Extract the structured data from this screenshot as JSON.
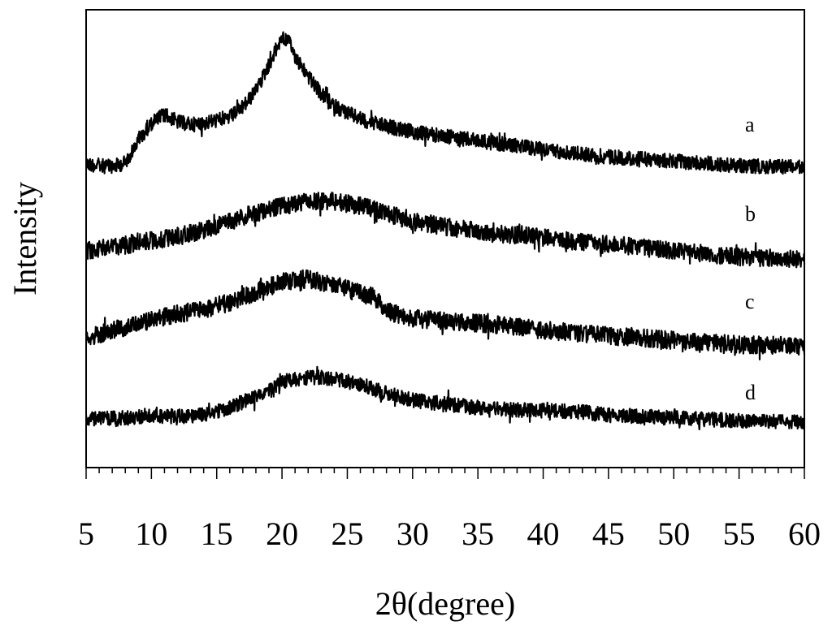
{
  "chart_data": {
    "type": "line",
    "title": "",
    "xlabel": "2θ(degree)",
    "ylabel": "Intensity",
    "xlim": [
      5,
      60
    ],
    "xticks": [
      5,
      10,
      15,
      20,
      25,
      30,
      35,
      40,
      45,
      50,
      55,
      60
    ],
    "yticks_shown": false,
    "grid": false,
    "legend": "inline labels at right",
    "series": [
      {
        "name": "a",
        "color": "#000000",
        "profile": [
          [
            5,
            0.06
          ],
          [
            6,
            0.05
          ],
          [
            7,
            0.04
          ],
          [
            8,
            0.07
          ],
          [
            9,
            0.22
          ],
          [
            10,
            0.34
          ],
          [
            11,
            0.4
          ],
          [
            12,
            0.35
          ],
          [
            13,
            0.33
          ],
          [
            14,
            0.34
          ],
          [
            15,
            0.36
          ],
          [
            16,
            0.38
          ],
          [
            17,
            0.45
          ],
          [
            18,
            0.56
          ],
          [
            19,
            0.74
          ],
          [
            20,
            0.93
          ],
          [
            20.5,
            0.9
          ],
          [
            21,
            0.8
          ],
          [
            22,
            0.66
          ],
          [
            23,
            0.54
          ],
          [
            24,
            0.46
          ],
          [
            25,
            0.41
          ],
          [
            26,
            0.37
          ],
          [
            27,
            0.34
          ],
          [
            28,
            0.32
          ],
          [
            30,
            0.28
          ],
          [
            35,
            0.22
          ],
          [
            40,
            0.16
          ],
          [
            45,
            0.11
          ],
          [
            50,
            0.08
          ],
          [
            55,
            0.05
          ],
          [
            60,
            0.04
          ]
        ]
      },
      {
        "name": "b",
        "color": "#000000",
        "profile": [
          [
            5,
            0.06
          ],
          [
            8,
            0.1
          ],
          [
            10,
            0.13
          ],
          [
            12,
            0.16
          ],
          [
            14,
            0.2
          ],
          [
            16,
            0.26
          ],
          [
            18,
            0.32
          ],
          [
            20,
            0.37
          ],
          [
            22,
            0.4
          ],
          [
            24,
            0.4
          ],
          [
            26,
            0.37
          ],
          [
            28,
            0.32
          ],
          [
            30,
            0.26
          ],
          [
            33,
            0.22
          ],
          [
            36,
            0.18
          ],
          [
            38,
            0.17
          ],
          [
            40,
            0.15
          ],
          [
            42,
            0.13
          ],
          [
            45,
            0.11
          ],
          [
            50,
            0.06
          ],
          [
            55,
            0.02
          ],
          [
            60,
            0.0
          ]
        ]
      },
      {
        "name": "c",
        "color": "#000000",
        "profile": [
          [
            5,
            0.08
          ],
          [
            8,
            0.15
          ],
          [
            10,
            0.2
          ],
          [
            12,
            0.24
          ],
          [
            14,
            0.27
          ],
          [
            16,
            0.32
          ],
          [
            18,
            0.39
          ],
          [
            20,
            0.46
          ],
          [
            22,
            0.48
          ],
          [
            24,
            0.44
          ],
          [
            26,
            0.38
          ],
          [
            27,
            0.36
          ],
          [
            28,
            0.26
          ],
          [
            30,
            0.21
          ],
          [
            33,
            0.19
          ],
          [
            36,
            0.17
          ],
          [
            40,
            0.13
          ],
          [
            45,
            0.09
          ],
          [
            50,
            0.06
          ],
          [
            55,
            0.03
          ],
          [
            60,
            0.02
          ]
        ]
      },
      {
        "name": "d",
        "color": "#000000",
        "profile": [
          [
            5,
            0.03
          ],
          [
            8,
            0.04
          ],
          [
            10,
            0.05
          ],
          [
            12,
            0.05
          ],
          [
            14,
            0.06
          ],
          [
            16,
            0.11
          ],
          [
            18,
            0.19
          ],
          [
            20,
            0.28
          ],
          [
            22,
            0.32
          ],
          [
            24,
            0.31
          ],
          [
            26,
            0.27
          ],
          [
            28,
            0.21
          ],
          [
            30,
            0.16
          ],
          [
            33,
            0.13
          ],
          [
            36,
            0.1
          ],
          [
            40,
            0.09
          ],
          [
            43,
            0.08
          ],
          [
            45,
            0.06
          ],
          [
            50,
            0.04
          ],
          [
            55,
            0.02
          ],
          [
            60,
            0.01
          ]
        ]
      }
    ]
  }
}
